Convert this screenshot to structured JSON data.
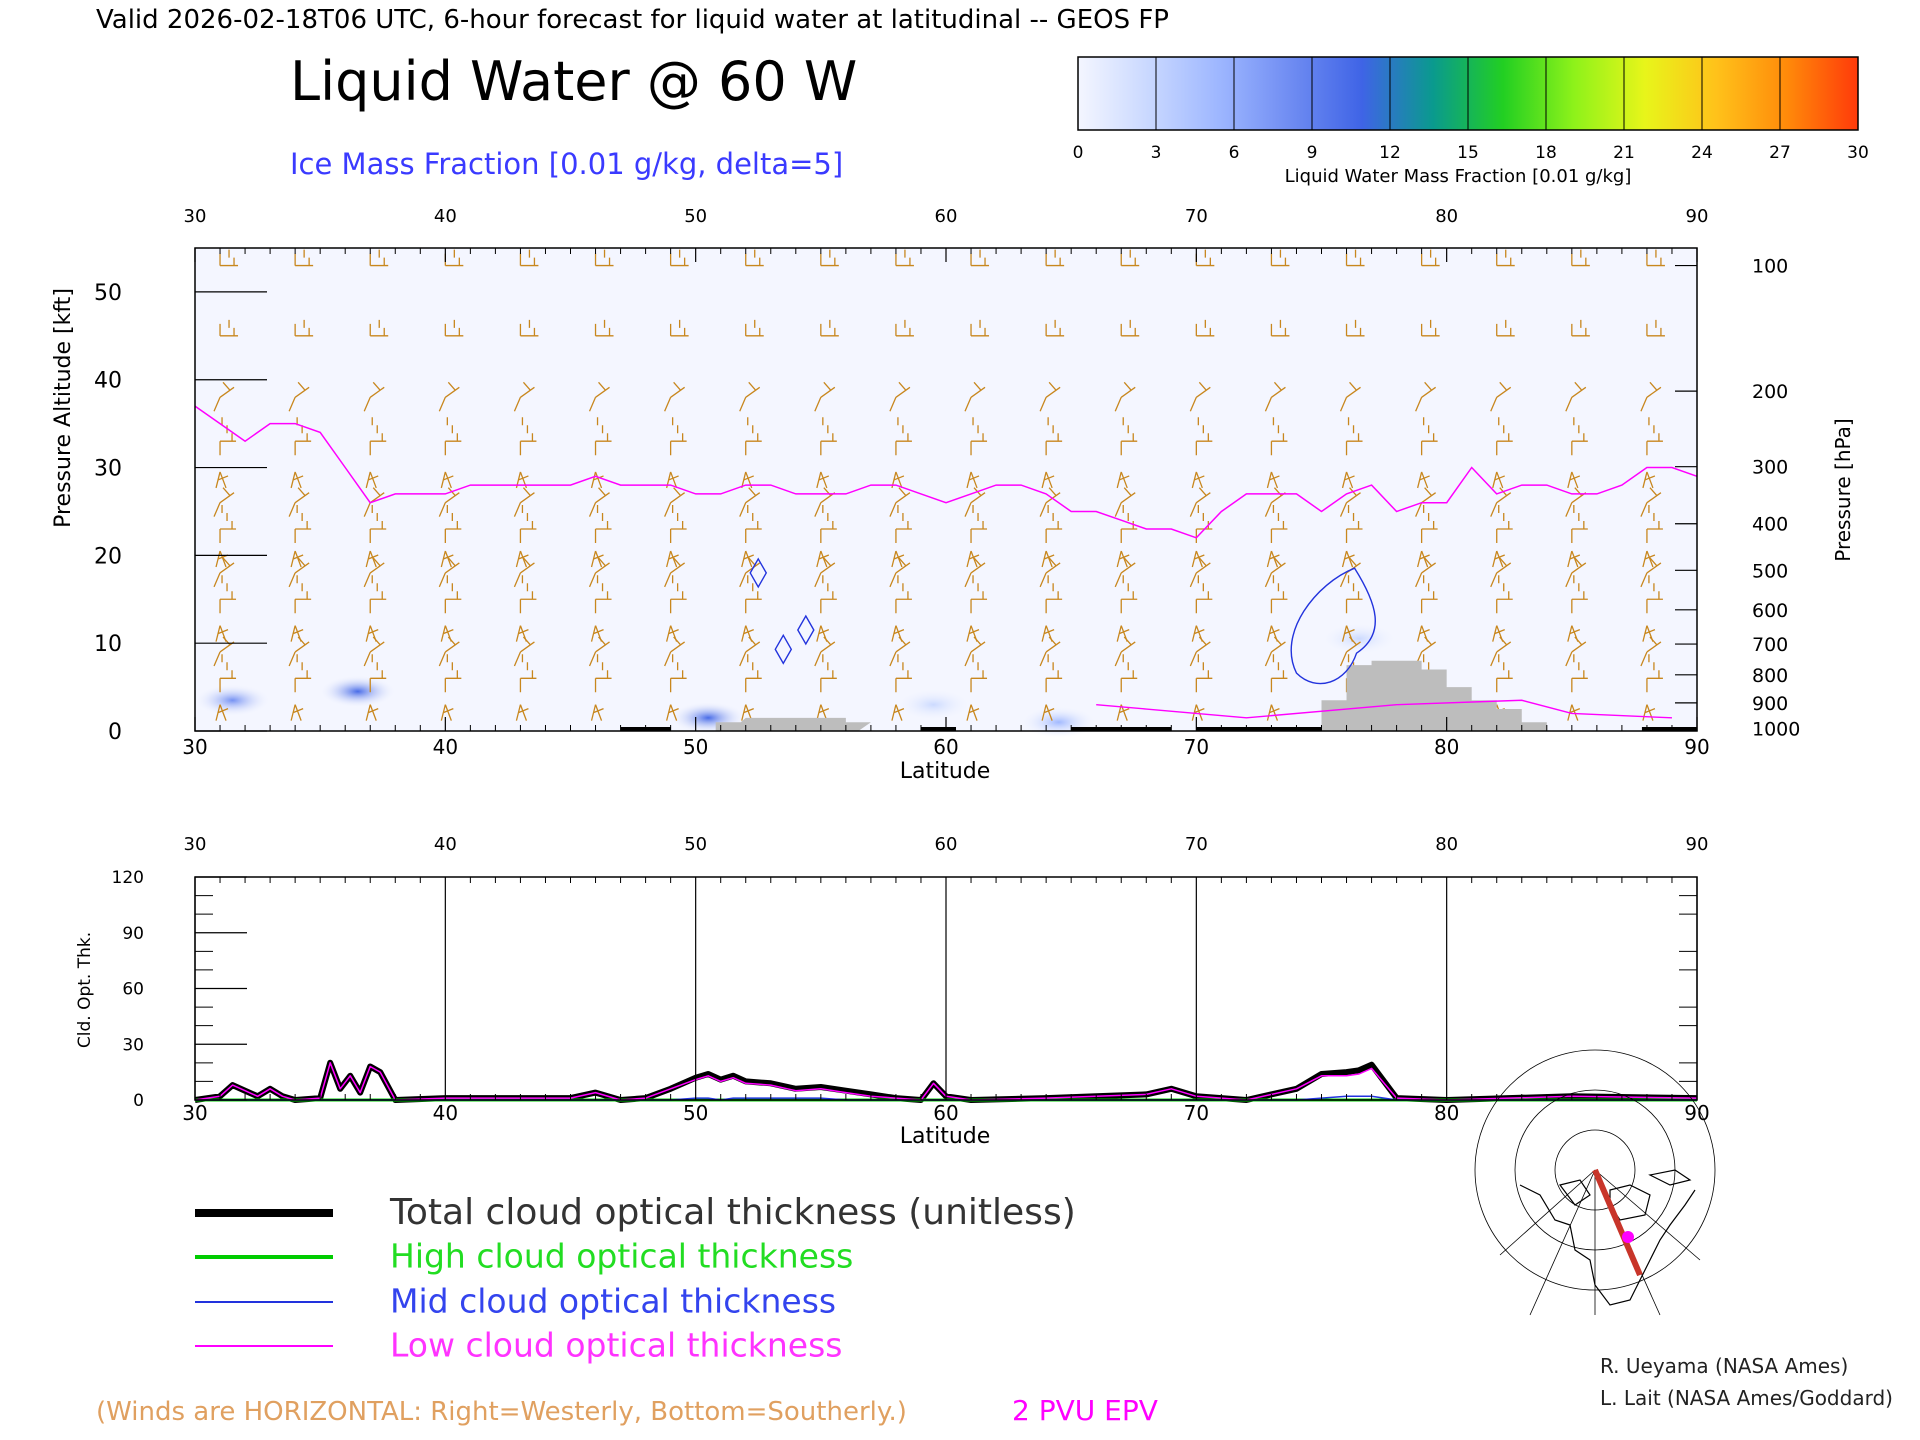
{
  "header": {
    "valid_line": "Valid 2026-02-18T06 UTC, 6-hour forecast for liquid water at latitudinal -- GEOS FP",
    "title": "Liquid Water @ 60 W",
    "ice_subtitle": "Ice Mass Fraction [0.01 g/kg, delta=5]"
  },
  "colorbar": {
    "label": "Liquid Water Mass Fraction [0.01 g/kg]",
    "ticks": [
      "0",
      "3",
      "6",
      "9",
      "12",
      "15",
      "18",
      "21",
      "24",
      "27",
      "30"
    ],
    "colors": [
      "#f4f6ff",
      "#c9d8ff",
      "#9db6ff",
      "#6f8cf2",
      "#3f64e6",
      "#0a9a8e",
      "#22cf22",
      "#8ef21a",
      "#e8f51a",
      "#ffc21a",
      "#ff8a0a",
      "#ff3a0a"
    ]
  },
  "colors": {
    "winds": "#c8871e",
    "epv": "#ff00ff",
    "ice_contour": "#2233dd",
    "ground": "#bdbdbd",
    "total": "#000000",
    "high": "#00cc00",
    "mid": "#2233dd",
    "low": "#ff00ff"
  },
  "chart_data": [
    {
      "type": "heatmap",
      "title": "Liquid Water @ 60 W",
      "xlabel": "Latitude",
      "ylabel": "Pressure Altitude [kft]",
      "y2label": "Pressure [hPa]",
      "xlim": [
        30,
        90
      ],
      "ylim": [
        0,
        55
      ],
      "x_ticks": [
        "30",
        "40",
        "50",
        "60",
        "70",
        "80",
        "90"
      ],
      "y_ticks": [
        "0",
        "10",
        "20",
        "30",
        "40",
        "50"
      ],
      "pressure_ticks": [
        {
          "label": "100",
          "kft": 53
        },
        {
          "label": "200",
          "kft": 38.7
        },
        {
          "label": "300",
          "kft": 30.1
        },
        {
          "label": "400",
          "kft": 23.6
        },
        {
          "label": "500",
          "kft": 18.3
        },
        {
          "label": "600",
          "kft": 13.8
        },
        {
          "label": "700",
          "kft": 9.9
        },
        {
          "label": "800",
          "kft": 6.4
        },
        {
          "label": "900",
          "kft": 3.2
        },
        {
          "label": "1000",
          "kft": 0.3
        }
      ],
      "epv_2pvu_line": {
        "lat": [
          30,
          31,
          32,
          33,
          34,
          35,
          36,
          37,
          38,
          39,
          40,
          41,
          42,
          43,
          44,
          45,
          46,
          47,
          48,
          49,
          50,
          51,
          52,
          53,
          54,
          55,
          56,
          57,
          58,
          59,
          60,
          61,
          62,
          63,
          64,
          65,
          66,
          67,
          68,
          69,
          70,
          71,
          72,
          73,
          74,
          75,
          76,
          77,
          78,
          79,
          80,
          81,
          82,
          83,
          84,
          85,
          86,
          87,
          88,
          89,
          90
        ],
        "kft": [
          37,
          35,
          33,
          35,
          35,
          34,
          30,
          26,
          27,
          27,
          27,
          28,
          28,
          28,
          28,
          28,
          29,
          28,
          28,
          28,
          27,
          27,
          28,
          28,
          27,
          27,
          27,
          28,
          28,
          27,
          26,
          27,
          28,
          28,
          27,
          25,
          25,
          24,
          23,
          23,
          22,
          25,
          27,
          27,
          27,
          25,
          27,
          28,
          25,
          26,
          26,
          30,
          27,
          28,
          28,
          27,
          27,
          28,
          30,
          30,
          29
        ]
      },
      "ice_contours_kft": [
        {
          "lat_center": 52.5,
          "kft_center": 18
        },
        {
          "lat_center": 54.4,
          "kft_center": 11.5
        },
        {
          "lat_center": 53.5,
          "kft_center": 9.3
        },
        {
          "lat_center": 76,
          "kft_center": 10
        }
      ],
      "ground_kft": {
        "lat": [
          50.8,
          52,
          53,
          54,
          55,
          56,
          75,
          76,
          77,
          78,
          79,
          80,
          81,
          82,
          83
        ],
        "kft": [
          1.0,
          1.5,
          1.5,
          1.5,
          1.5,
          1.0,
          3.5,
          7.5,
          8.0,
          8.0,
          7.0,
          5.0,
          3.5,
          2.5,
          1.0
        ]
      },
      "liquid_blobs": [
        {
          "lat": 31.5,
          "kft": 3.5,
          "value": 9
        },
        {
          "lat": 36.5,
          "kft": 4.5,
          "value": 10
        },
        {
          "lat": 50.5,
          "kft": 1.5,
          "value": 11
        },
        {
          "lat": 59.5,
          "kft": 3.0,
          "value": 4
        },
        {
          "lat": 76.5,
          "kft": 10.5,
          "value": 4
        },
        {
          "lat": 64.5,
          "kft": 1.0,
          "value": 6
        }
      ]
    },
    {
      "type": "line",
      "xlabel": "Latitude",
      "ylabel": "Cld. Opt. Thk.",
      "xlim": [
        30,
        90
      ],
      "ylim": [
        0,
        120
      ],
      "x_ticks": [
        "30",
        "40",
        "50",
        "60",
        "70",
        "80",
        "90"
      ],
      "y_ticks": [
        "0",
        "30",
        "60",
        "90",
        "120"
      ],
      "x": [
        30,
        31,
        31.5,
        32,
        32.5,
        33,
        33.5,
        34,
        35,
        35.4,
        35.8,
        36.2,
        36.6,
        37,
        37.4,
        38,
        40,
        45,
        46,
        47,
        48,
        49,
        50,
        50.5,
        51,
        51.5,
        52,
        53,
        54,
        55,
        56,
        57,
        58,
        59,
        59.5,
        60,
        61,
        64,
        66,
        68,
        69,
        70,
        72,
        74,
        75,
        76,
        76.5,
        77,
        78,
        80,
        85,
        90
      ],
      "series": [
        {
          "name": "Total cloud optical thickness (unitless)",
          "values": [
            0,
            2,
            8,
            5,
            2,
            6,
            2,
            0,
            1,
            20,
            6,
            13,
            4,
            18,
            15,
            0,
            1,
            1,
            4,
            0,
            1,
            6,
            12,
            14,
            11,
            13,
            10,
            9,
            6,
            7,
            5,
            3,
            1,
            0,
            9,
            2,
            0,
            1,
            2,
            3,
            6,
            2,
            0,
            6,
            14,
            15,
            16,
            19,
            1,
            0,
            2,
            1
          ]
        },
        {
          "name": "High cloud optical thickness",
          "values": [
            0,
            0,
            0,
            0,
            0,
            0,
            0,
            0,
            0,
            0,
            0,
            0,
            0,
            0,
            0,
            0,
            0,
            0,
            0,
            0,
            0,
            0,
            0,
            0,
            0,
            0,
            0,
            0,
            0,
            0,
            0,
            0,
            0,
            0,
            0,
            0,
            0,
            0,
            0,
            0,
            0,
            0,
            0,
            0,
            0,
            0,
            0,
            0,
            0,
            0,
            0,
            0
          ]
        },
        {
          "name": "Mid cloud optical thickness",
          "values": [
            0,
            0,
            0,
            0,
            0,
            0,
            0,
            0,
            0,
            0,
            0,
            0,
            0,
            0,
            0,
            0,
            0,
            0,
            0,
            0,
            0,
            0,
            1,
            1,
            0,
            1,
            1,
            1,
            1,
            1,
            0,
            0,
            0,
            0,
            0,
            0,
            0,
            0,
            0,
            0,
            0,
            0,
            0,
            0,
            1,
            2,
            2,
            2,
            0,
            0,
            0,
            0
          ]
        },
        {
          "name": "Low cloud optical thickness",
          "values": [
            0,
            2,
            8,
            5,
            2,
            6,
            2,
            0,
            1,
            20,
            6,
            13,
            4,
            18,
            15,
            0,
            1,
            1,
            4,
            0,
            1,
            6,
            11,
            13,
            10,
            12,
            9,
            8,
            5,
            6,
            4,
            2,
            1,
            0,
            9,
            2,
            0,
            1,
            2,
            3,
            6,
            2,
            0,
            6,
            13,
            13,
            14,
            17,
            1,
            0,
            2,
            1
          ]
        }
      ]
    }
  ],
  "legend": {
    "total": "Total cloud optical thickness (unitless)",
    "high": "High cloud optical thickness",
    "mid": "Mid cloud optical thickness",
    "low": "Low cloud optical thickness"
  },
  "footer": {
    "winds_note": "(Winds are HORIZONTAL: Right=Westerly, Bottom=Southerly.)",
    "epv_label": "2 PVU EPV",
    "credit1": "R. Ueyama (NASA Ames)",
    "credit2": "L. Lait (NASA Ames/Goddard)"
  }
}
